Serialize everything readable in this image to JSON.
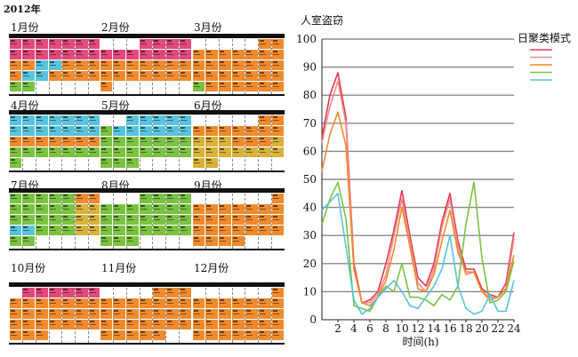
{
  "year": "2012年",
  "month_labels": [
    "1月份",
    "2月份",
    "3月份",
    "4月份",
    "5月份",
    "6月份",
    "7月份",
    "8月份",
    "9月份",
    "10月份",
    "11月份",
    "12月份"
  ],
  "colors": {
    "red": "#e03a4e",
    "orange": "#ef8b2e",
    "yellow": "#d8b23a",
    "green": "#7cc242",
    "cyan": "#58c3dc",
    "pink": "#e24a7b",
    "grid": "#888888"
  },
  "calendar_patterns": [
    [
      [
        "pink",
        "pink",
        "pink",
        "pink",
        "pink",
        "pink",
        "pink"
      ],
      [
        "pink",
        "pink",
        "pink",
        "pink",
        "pink",
        "pink",
        "pink"
      ],
      [
        "orange",
        "orange",
        "cyan",
        "cyan",
        "orange",
        "orange",
        "orange"
      ],
      [
        "orange",
        "cyan",
        "cyan",
        "orange",
        "orange",
        "orange",
        "orange"
      ],
      [
        "green",
        "green",
        "",
        "",
        "",
        "",
        ""
      ]
    ],
    [
      [
        "",
        "",
        "",
        "pink",
        "pink",
        "pink",
        "pink"
      ],
      [
        "pink",
        "pink",
        "pink",
        "pink",
        "pink",
        "pink",
        "pink"
      ],
      [
        "orange",
        "orange",
        "orange",
        "orange",
        "orange",
        "orange",
        "orange"
      ],
      [
        "orange",
        "orange",
        "orange",
        "orange",
        "orange",
        "orange",
        "orange"
      ],
      [
        "orange",
        "",
        "",
        "",
        "",
        "",
        ""
      ]
    ],
    [
      [
        "",
        "",
        "",
        "",
        "",
        "orange",
        "orange"
      ],
      [
        "orange",
        "orange",
        "orange",
        "orange",
        "orange",
        "orange",
        "orange"
      ],
      [
        "orange",
        "orange",
        "orange",
        "orange",
        "orange",
        "orange",
        "orange"
      ],
      [
        "orange",
        "orange",
        "orange",
        "orange",
        "orange",
        "orange",
        "orange"
      ],
      [
        "green",
        "orange",
        "orange",
        "orange",
        "orange",
        "orange",
        "orange"
      ]
    ],
    [
      [
        "cyan",
        "cyan",
        "cyan",
        "cyan",
        "cyan",
        "cyan",
        "cyan"
      ],
      [
        "cyan",
        "cyan",
        "cyan",
        "cyan",
        "cyan",
        "cyan",
        "cyan"
      ],
      [
        "orange",
        "orange",
        "orange",
        "orange",
        "orange",
        "orange",
        "orange"
      ],
      [
        "green",
        "green",
        "green",
        "green",
        "green",
        "green",
        "green"
      ],
      [
        "green",
        "",
        "",
        "",
        "",
        "",
        ""
      ]
    ],
    [
      [
        "",
        "",
        "cyan",
        "cyan",
        "cyan",
        "cyan",
        "cyan"
      ],
      [
        "green",
        "cyan",
        "cyan",
        "cyan",
        "cyan",
        "cyan",
        "cyan"
      ],
      [
        "green",
        "green",
        "green",
        "green",
        "green",
        "green",
        "green"
      ],
      [
        "green",
        "green",
        "green",
        "green",
        "green",
        "green",
        "green"
      ],
      [
        "green",
        "green",
        "green",
        "",
        "",
        "",
        ""
      ]
    ],
    [
      [
        "",
        "",
        "",
        "",
        "",
        "orange",
        "orange"
      ],
      [
        "orange",
        "orange",
        "orange",
        "orange",
        "orange",
        "orange",
        "orange"
      ],
      [
        "yellow",
        "yellow",
        "yellow",
        "orange",
        "orange",
        "orange",
        "yellow"
      ],
      [
        "yellow",
        "yellow",
        "yellow",
        "yellow",
        "yellow",
        "yellow",
        "yellow"
      ],
      [
        "yellow",
        "yellow",
        "",
        "",
        "",
        "",
        ""
      ]
    ],
    [
      [
        "green",
        "green",
        "green",
        "green",
        "green",
        "orange",
        "orange"
      ],
      [
        "green",
        "green",
        "green",
        "green",
        "green",
        "yellow",
        "yellow"
      ],
      [
        "green",
        "green",
        "green",
        "green",
        "green",
        "yellow",
        "yellow"
      ],
      [
        "cyan",
        "cyan",
        "green",
        "green",
        "green",
        "yellow",
        "yellow"
      ],
      [
        "green",
        "green",
        "",
        "",
        "",
        "",
        ""
      ]
    ],
    [
      [
        "",
        "",
        "",
        "green",
        "green",
        "green",
        "green"
      ],
      [
        "green",
        "green",
        "green",
        "green",
        "green",
        "green",
        "green"
      ],
      [
        "green",
        "green",
        "green",
        "green",
        "green",
        "green",
        "green"
      ],
      [
        "green",
        "green",
        "green",
        "green",
        "green",
        "green",
        "green"
      ],
      [
        "green",
        "green",
        "green",
        "",
        "",
        "",
        ""
      ]
    ],
    [
      [
        "",
        "",
        "",
        "",
        "",
        "",
        "orange"
      ],
      [
        "orange",
        "orange",
        "orange",
        "orange",
        "orange",
        "orange",
        "orange"
      ],
      [
        "orange",
        "orange",
        "orange",
        "orange",
        "orange",
        "orange",
        "orange"
      ],
      [
        "orange",
        "orange",
        "orange",
        "orange",
        "orange",
        "orange",
        "orange"
      ],
      [
        "orange",
        "orange",
        "orange",
        "orange",
        "",
        "",
        ""
      ]
    ],
    [
      [
        "",
        "pink",
        "pink",
        "pink",
        "pink",
        "pink",
        "pink"
      ],
      [
        "orange",
        "orange",
        "orange",
        "orange",
        "orange",
        "orange",
        "orange"
      ],
      [
        "orange",
        "orange",
        "orange",
        "orange",
        "orange",
        "orange",
        "orange"
      ],
      [
        "orange",
        "orange",
        "orange",
        "orange",
        "orange",
        "orange",
        "orange"
      ],
      [
        "orange",
        "orange",
        "orange",
        "",
        "",
        "",
        ""
      ]
    ],
    [
      [
        "",
        "",
        "",
        "",
        "orange",
        "orange",
        "orange"
      ],
      [
        "orange",
        "orange",
        "orange",
        "orange",
        "orange",
        "orange",
        "orange"
      ],
      [
        "orange",
        "orange",
        "orange",
        "orange",
        "orange",
        "orange",
        "orange"
      ],
      [
        "orange",
        "orange",
        "orange",
        "orange",
        "orange",
        "orange",
        "orange"
      ],
      [
        "orange",
        "orange",
        "orange",
        "orange",
        "orange",
        "",
        ""
      ]
    ],
    [
      [
        "",
        "",
        "",
        "",
        "",
        "",
        "orange"
      ],
      [
        "orange",
        "orange",
        "orange",
        "orange",
        "orange",
        "orange",
        "orange"
      ],
      [
        "orange",
        "orange",
        "orange",
        "orange",
        "orange",
        "orange",
        "orange"
      ],
      [
        "orange",
        "orange",
        "orange",
        "orange",
        "orange",
        "orange",
        "orange"
      ],
      [
        "orange",
        "orange",
        "orange",
        "orange",
        "orange",
        "orange",
        "orange"
      ]
    ]
  ],
  "chart_data": {
    "type": "line",
    "title": "人室盗窃",
    "xlabel": "时间(h)",
    "ylabel": "",
    "xlim": [
      0,
      24
    ],
    "ylim": [
      0,
      100
    ],
    "xticks": [
      2,
      4,
      6,
      8,
      10,
      12,
      14,
      16,
      18,
      20,
      22,
      24
    ],
    "yticks": [
      0,
      10,
      20,
      30,
      40,
      50,
      60,
      70,
      80,
      90,
      100
    ],
    "grid": true,
    "legend_title": "日聚类模式",
    "legend_position": "top-right",
    "x": [
      0,
      1,
      2,
      3,
      4,
      5,
      6,
      7,
      8,
      9,
      10,
      11,
      12,
      13,
      14,
      15,
      16,
      17,
      18,
      19,
      20,
      21,
      22,
      23,
      24
    ],
    "series": [
      {
        "color": "#e03a4e",
        "values": [
          65,
          80,
          88,
          72,
          20,
          6,
          7,
          10,
          20,
          32,
          46,
          30,
          15,
          12,
          20,
          35,
          45,
          28,
          18,
          18,
          11,
          9,
          8,
          13,
          31
        ]
      },
      {
        "color": "#f08c8c",
        "values": [
          63,
          76,
          85,
          70,
          18,
          6,
          6,
          9,
          16,
          30,
          43,
          28,
          13,
          10,
          18,
          33,
          43,
          26,
          16,
          17,
          10,
          8,
          8,
          11,
          29
        ]
      },
      {
        "color": "#ef8b2e",
        "values": [
          53,
          66,
          74,
          62,
          18,
          6,
          5,
          8,
          14,
          25,
          40,
          26,
          11,
          10,
          16,
          28,
          39,
          24,
          17,
          17,
          10,
          7,
          8,
          11,
          23
        ]
      },
      {
        "color": "#7cc242",
        "values": [
          34,
          43,
          49,
          36,
          5,
          4,
          3,
          8,
          12,
          10,
          20,
          8,
          8,
          7,
          5,
          9,
          7,
          12,
          34,
          49,
          22,
          6,
          7,
          10,
          21
        ]
      },
      {
        "color": "#58c3dc",
        "values": [
          39,
          42,
          45,
          26,
          7,
          2,
          4,
          8,
          11,
          14,
          10,
          5,
          4,
          8,
          12,
          18,
          30,
          12,
          4,
          2,
          3,
          9,
          3,
          3,
          14
        ]
      }
    ]
  }
}
